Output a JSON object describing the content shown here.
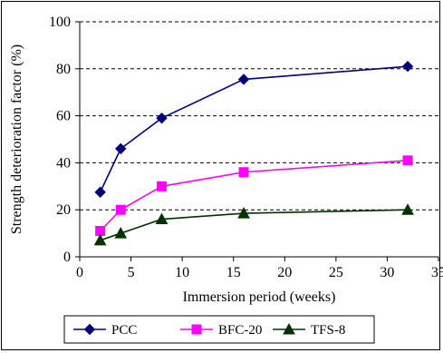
{
  "chart_data": {
    "type": "line",
    "xlabel": "Immersion period (weeks)",
    "ylabel": "Strength deterioration factor (%)",
    "xlim": [
      0,
      35
    ],
    "ylim": [
      0,
      100
    ],
    "xticks": [
      0,
      5,
      10,
      15,
      20,
      25,
      30,
      35
    ],
    "yticks": [
      0,
      20,
      40,
      60,
      80,
      100
    ],
    "grid": "horizontal dashed",
    "legend": "bottom",
    "series": [
      {
        "name": "PCC",
        "color": "#00007f",
        "marker": "diamond",
        "x": [
          2,
          4,
          8,
          16,
          32
        ],
        "y": [
          27.5,
          46,
          59,
          75.5,
          81
        ]
      },
      {
        "name": "BFC-20",
        "color": "#ff00ff",
        "marker": "square",
        "x": [
          2,
          4,
          8,
          16,
          32
        ],
        "y": [
          11,
          20,
          30,
          36,
          41
        ]
      },
      {
        "name": "TFS-8",
        "color": "#003300",
        "marker": "triangle",
        "x": [
          2,
          4,
          8,
          16,
          32
        ],
        "y": [
          7,
          10,
          16,
          18.5,
          20
        ]
      }
    ]
  }
}
